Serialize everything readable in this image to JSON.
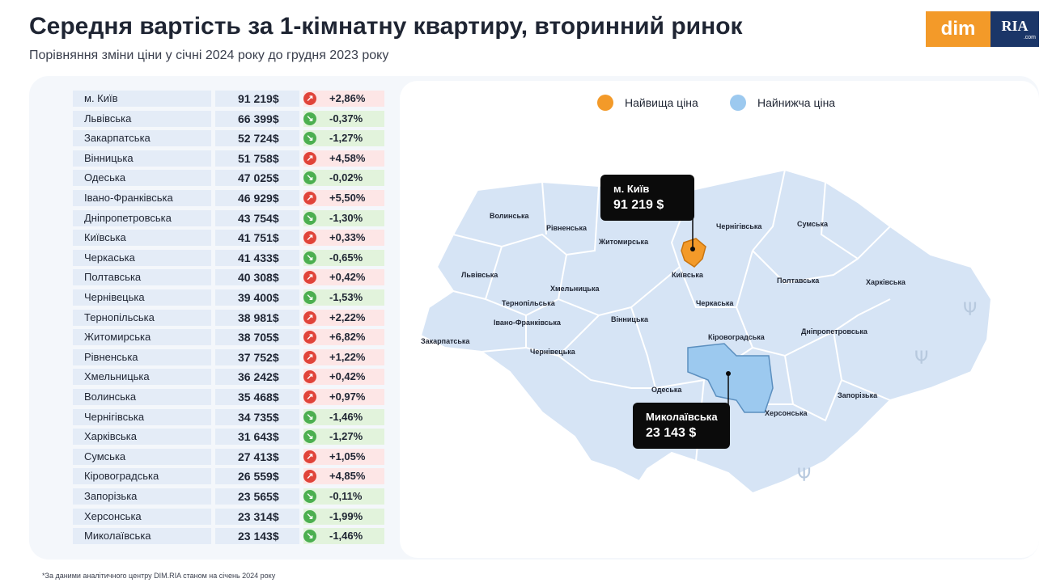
{
  "header": {
    "title": "Середня вартість за 1-кімнатну квартиру, вторинний ринок",
    "subtitle": "Порівняння зміни ціни у січні 2024 року до грудня 2023 року"
  },
  "logo": {
    "dim_label": "dim",
    "ria_label": "RIA",
    "ria_suffix": ".com"
  },
  "legend": {
    "highest_label": "Найвища ціна",
    "lowest_label": "Найнижча ціна",
    "highest_color": "#f39a29",
    "lowest_color": "#9cc9ef"
  },
  "callouts": {
    "kyiv": {
      "name": "м. Київ",
      "price": "91 219 $"
    },
    "mykolaiv": {
      "name": "Миколаївська",
      "price": "23 143 $"
    }
  },
  "footnote": "*За даними аналітичного центру DIM.RIA станом на січень 2024 року",
  "colors": {
    "up": "#e0443a",
    "down": "#4caf50",
    "map_region": "#d6e4f5",
    "map_highlight": "#9cc9ef"
  },
  "chart_data": {
    "type": "table",
    "columns": [
      "region",
      "price_usd",
      "change_pct"
    ],
    "rows": [
      {
        "region": "м. Київ",
        "price": "91 219$",
        "change": "+2,86%",
        "direction": "up"
      },
      {
        "region": "Львівська",
        "price": "66 399$",
        "change": "-0,37%",
        "direction": "down"
      },
      {
        "region": "Закарпатська",
        "price": "52 724$",
        "change": "-1,27%",
        "direction": "down"
      },
      {
        "region": "Вінницька",
        "price": "51 758$",
        "change": "+4,58%",
        "direction": "up"
      },
      {
        "region": "Одеська",
        "price": "47 025$",
        "change": "-0,02%",
        "direction": "down"
      },
      {
        "region": "Івано-Франківська",
        "price": "46 929$",
        "change": "+5,50%",
        "direction": "up"
      },
      {
        "region": "Дніпропетровська",
        "price": "43 754$",
        "change": "-1,30%",
        "direction": "down"
      },
      {
        "region": "Київська",
        "price": "41 751$",
        "change": "+0,33%",
        "direction": "up"
      },
      {
        "region": "Черкаська",
        "price": "41 433$",
        "change": "-0,65%",
        "direction": "down"
      },
      {
        "region": "Полтавська",
        "price": "40 308$",
        "change": "+0,42%",
        "direction": "up"
      },
      {
        "region": "Чернівецька",
        "price": "39 400$",
        "change": "-1,53%",
        "direction": "down"
      },
      {
        "region": "Тернопільська",
        "price": "38 981$",
        "change": "+2,22%",
        "direction": "up"
      },
      {
        "region": "Житомирська",
        "price": "38 705$",
        "change": "+6,82%",
        "direction": "up"
      },
      {
        "region": "Рівненська",
        "price": "37 752$",
        "change": "+1,22%",
        "direction": "up"
      },
      {
        "region": "Хмельницька",
        "price": "36 242$",
        "change": "+0,42%",
        "direction": "up"
      },
      {
        "region": "Волинська",
        "price": "35 468$",
        "change": "+0,97%",
        "direction": "up"
      },
      {
        "region": "Чернігівська",
        "price": "34 735$",
        "change": "-1,46%",
        "direction": "down"
      },
      {
        "region": "Харківська",
        "price": "31 643$",
        "change": "-1,27%",
        "direction": "down"
      },
      {
        "region": "Сумська",
        "price": "27 413$",
        "change": "+1,05%",
        "direction": "up"
      },
      {
        "region": "Кіровоградська",
        "price": "26 559$",
        "change": "+4,85%",
        "direction": "up"
      },
      {
        "region": "Запорізька",
        "price": "23 565$",
        "change": "-0,11%",
        "direction": "down"
      },
      {
        "region": "Херсонська",
        "price": "23 314$",
        "change": "-1,99%",
        "direction": "down"
      },
      {
        "region": "Миколаївська",
        "price": "23 143$",
        "change": "-1,46%",
        "direction": "down"
      }
    ]
  },
  "map": {
    "regions": [
      "Волинська",
      "Рівненська",
      "Житомирська",
      "Чернігівська",
      "Сумська",
      "Львівська",
      "Київська",
      "Полтавська",
      "Харківська",
      "Хмельницька",
      "Тернопільська",
      "Черкаська",
      "Івано-Франківська",
      "Закарпатська",
      "Вінницька",
      "Кіровоградська",
      "Дніпропетровська",
      "Чернівецька",
      "Одеська",
      "Запорізька",
      "Херсонська"
    ],
    "highest_region": "м. Київ",
    "lowest_region": "Миколаївська"
  }
}
